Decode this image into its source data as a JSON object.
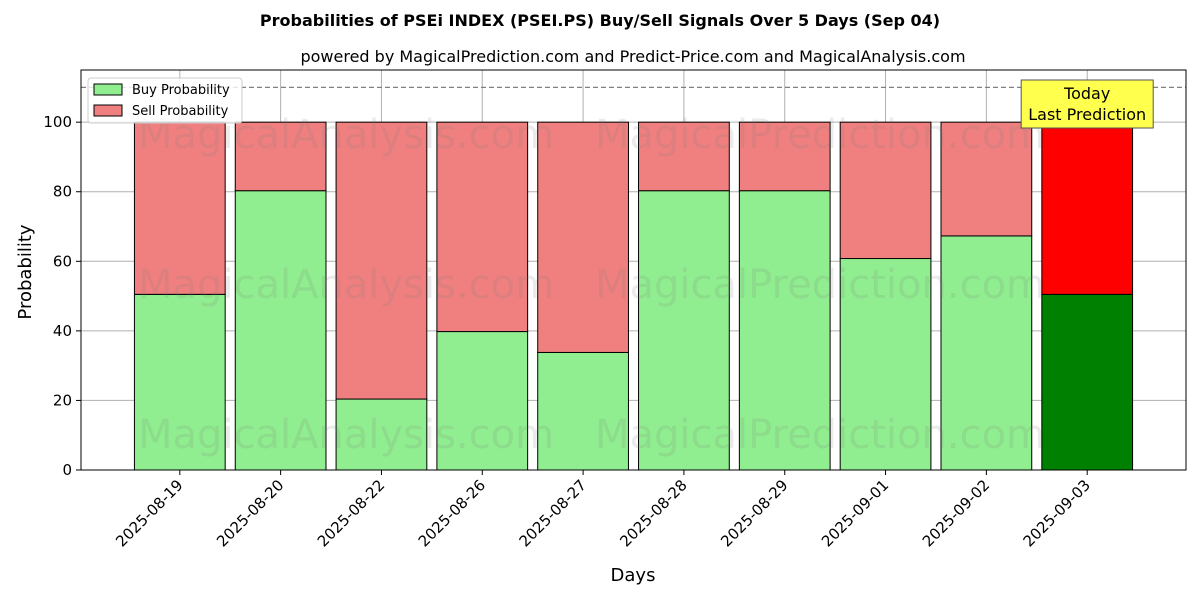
{
  "chart_data": {
    "type": "bar",
    "stacked": true,
    "title": "Probabilities of PSEi INDEX (PSEI.PS) Buy/Sell Signals Over 5 Days (Sep 04)",
    "subtitle": "powered by MagicalPrediction.com and Predict-Price.com and MagicalAnalysis.com",
    "xlabel": "Days",
    "ylabel": "Probability",
    "ylim": [
      0,
      115
    ],
    "yticks": [
      0,
      20,
      40,
      60,
      80,
      100
    ],
    "reference_line": 110,
    "grid": true,
    "legend_position": "top-left",
    "categories": [
      "2025-08-19",
      "2025-08-20",
      "2025-08-22",
      "2025-08-26",
      "2025-08-27",
      "2025-08-28",
      "2025-08-29",
      "2025-09-01",
      "2025-09-02",
      "2025-09-03"
    ],
    "series": [
      {
        "name": "Buy Probability",
        "color": "#90ee90",
        "highlight_color": "#008000",
        "values": [
          50.5,
          80.3,
          20.4,
          39.8,
          33.8,
          80.3,
          80.3,
          60.8,
          67.3,
          50.5
        ]
      },
      {
        "name": "Sell Probability",
        "color": "#f08080",
        "highlight_color": "#ff0000",
        "values": [
          49.5,
          19.7,
          79.6,
          60.2,
          66.2,
          19.7,
          19.7,
          39.2,
          32.7,
          49.5
        ]
      }
    ],
    "highlight_index": 9,
    "annotation": {
      "lines": [
        "Today",
        "Last Prediction"
      ],
      "color": "#ffff4d"
    },
    "watermarks": [
      "MagicalAnalysis.com",
      "MagicalPrediction.com"
    ]
  }
}
